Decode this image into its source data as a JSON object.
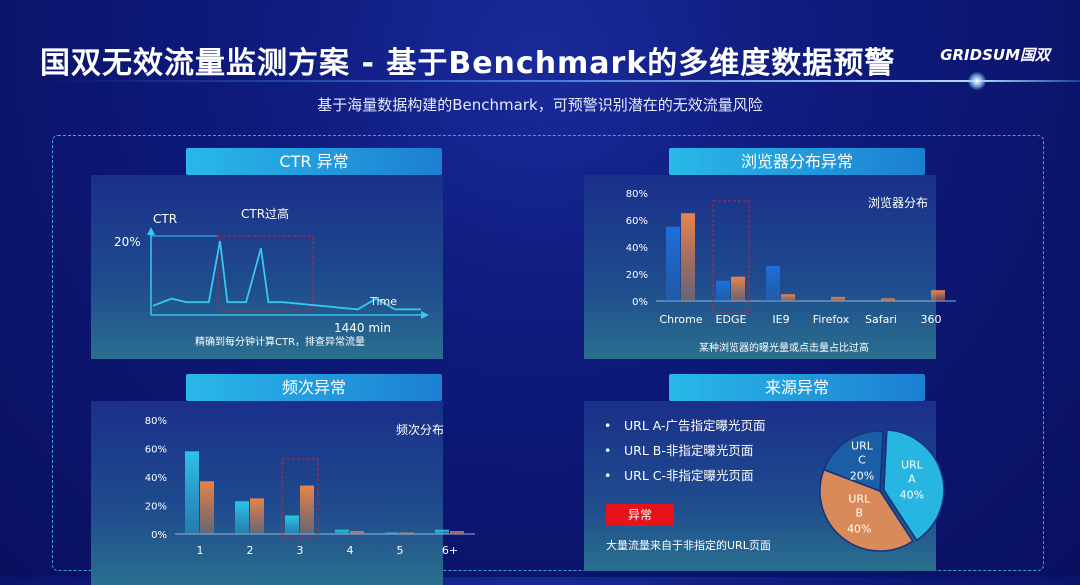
{
  "header": {
    "title": "国双无效流量监测方案 - 基于Benchmark的多维度数据预警",
    "logo": "GRIDSUM国双",
    "subtitle": "基于海量数据构建的Benchmark，可预警识别潜在的无效流量风险"
  },
  "panels": {
    "ctr": {
      "label": "CTR 异常",
      "y_axis_label": "CTR",
      "y_tick": "20%",
      "annotation": "CTR过高",
      "x_axis_label": "Time",
      "x_end": "1440 min",
      "caption": "精确到每分钟计算CTR，排查异常流量"
    },
    "browser": {
      "label": "浏览器分布异常",
      "chart_title": "浏览器分布",
      "caption": "某种浏览器的曝光量或点击量占比过高"
    },
    "frequency": {
      "label": "频次异常",
      "chart_title": "频次分布"
    },
    "source": {
      "label": "来源异常",
      "items": [
        "URL A-广告指定曝光页面",
        "URL B-非指定曝光页面",
        "URL C-非指定曝光页面"
      ],
      "badge": "异常",
      "caption": "大量流量来自于非指定的URL页面"
    }
  },
  "chart_data": [
    {
      "type": "line",
      "title": "",
      "xlabel": "Time",
      "ylabel": "CTR",
      "x_range": [
        0,
        1440
      ],
      "points": [
        [
          0,
          2
        ],
        [
          100,
          4
        ],
        [
          180,
          3
        ],
        [
          300,
          3
        ],
        [
          360,
          20
        ],
        [
          400,
          3
        ],
        [
          500,
          3
        ],
        [
          580,
          18
        ],
        [
          620,
          3
        ],
        [
          700,
          3
        ],
        [
          1100,
          1
        ],
        [
          1200,
          4
        ],
        [
          1300,
          1
        ],
        [
          1440,
          1
        ]
      ]
    },
    {
      "type": "bar",
      "title": "浏览器分布",
      "categories": [
        "Chrome",
        "EDGE",
        "IE9",
        "Firefox",
        "Safari",
        "360"
      ],
      "y_ticks": [
        "0%",
        "20%",
        "40%",
        "60%",
        "80%"
      ],
      "ylim": [
        0,
        80
      ],
      "series": [
        {
          "values": [
            55,
            15,
            26,
            0,
            0,
            0
          ],
          "color": "#1f6fd8"
        },
        {
          "values": [
            65,
            18,
            5,
            3,
            2,
            8
          ],
          "color": "#e8844a"
        }
      ],
      "highlight_category": "EDGE"
    },
    {
      "type": "bar",
      "title": "频次分布",
      "categories": [
        "1",
        "2",
        "3",
        "4",
        "5",
        "6+"
      ],
      "y_ticks": [
        "0%",
        "20%",
        "40%",
        "60%",
        "80%"
      ],
      "ylim": [
        0,
        80
      ],
      "series": [
        {
          "values": [
            58,
            23,
            13,
            3,
            1,
            3
          ],
          "color": "#2ec4e8"
        },
        {
          "values": [
            37,
            25,
            34,
            2,
            1,
            2
          ],
          "color": "#e8844a"
        }
      ],
      "highlight_category": "3"
    },
    {
      "type": "pie",
      "slices": [
        {
          "label": "URL A",
          "value": 40,
          "text": "40%",
          "color": "#27b5e2"
        },
        {
          "label": "URL B",
          "value": 40,
          "text": "40%",
          "color": "#d98a5a"
        },
        {
          "label": "URL C",
          "value": 20,
          "text": "20%",
          "color": "#1a5fa6"
        }
      ]
    }
  ]
}
